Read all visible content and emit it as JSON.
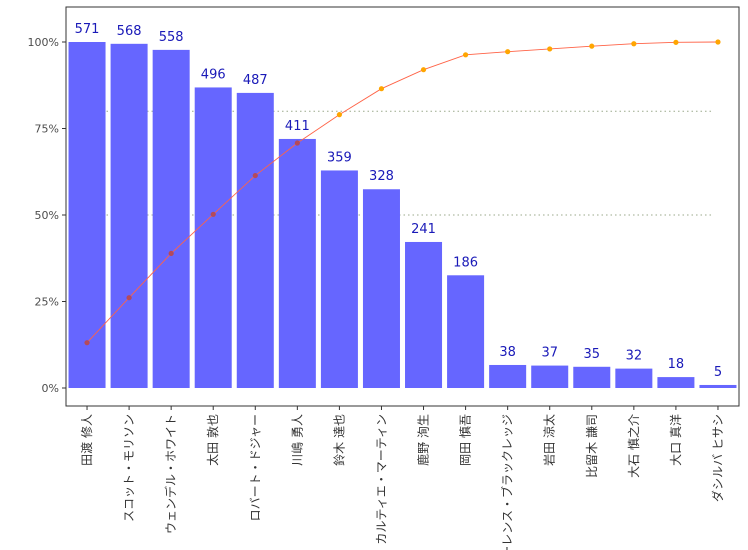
{
  "chart_data": {
    "type": "bar",
    "title": "",
    "xlabel": "",
    "ylabel": "",
    "categories": [
      "田渡 修人",
      "スコット・モリソン",
      "ウェンデル・ホワイト",
      "太田 敦也",
      "ロバート・ドジャー",
      "川嶋 勇人",
      "鈴木 達也",
      "カルティエ・マーティン",
      "鹿野 洵生",
      "岡田 慎吾",
      "ローレンス・ブラックレッジ",
      "岩田 涼太",
      "比留木 謙司",
      "大石 慎之介",
      "大口 真洋",
      "ダシルバ ヒサシ"
    ],
    "values": [
      571,
      568,
      558,
      496,
      487,
      411,
      359,
      328,
      241,
      186,
      38,
      37,
      35,
      32,
      18,
      5
    ],
    "cumulative_percent": [
      13.1,
      26.1,
      38.9,
      50.2,
      61.4,
      70.8,
      79.0,
      86.5,
      92.0,
      96.3,
      97.2,
      98.0,
      98.8,
      99.5,
      99.9,
      100.0
    ],
    "bar_ylim": [
      0,
      571
    ],
    "percent_axis": {
      "ylim": [
        0,
        100
      ],
      "ticks": [
        "0%",
        "25%",
        "50%",
        "75%",
        "100%"
      ],
      "tick_values": [
        0,
        25,
        50,
        75,
        100
      ]
    },
    "reference_lines_percent": [
      50,
      80
    ],
    "grid": false,
    "colors": {
      "bar": "#6666ff",
      "line": "#ff6347",
      "point": "#ffa500",
      "point_early": "#b44a5a",
      "label": "#1a1ab8",
      "reference": "#9aa88a"
    }
  }
}
